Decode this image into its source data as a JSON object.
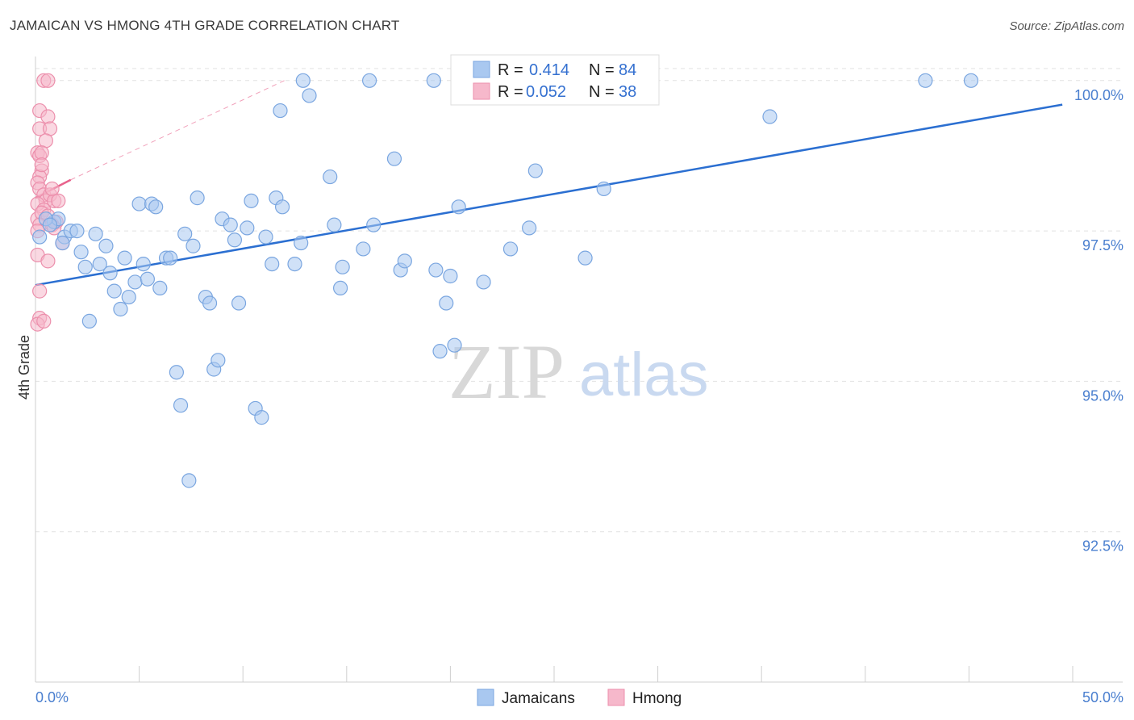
{
  "header": {
    "title": "JAMAICAN VS HMONG 4TH GRADE CORRELATION CHART",
    "source": "Source: ZipAtlas.com"
  },
  "chart_data": {
    "type": "scatter",
    "title": "JAMAICAN VS HMONG 4TH GRADE CORRELATION CHART",
    "xlabel": "",
    "ylabel": "4th Grade",
    "xlim": [
      0,
      50
    ],
    "ylim": [
      90.0,
      100.4
    ],
    "x_tick_labels": [
      "0.0%",
      "50.0%"
    ],
    "y_ticks": [
      92.5,
      95.0,
      97.5,
      100.0
    ],
    "y_tick_labels": [
      "92.5%",
      "95.0%",
      "97.5%",
      "100.0%"
    ],
    "grid": true,
    "watermark": {
      "part1": "ZIP",
      "part2": "atlas"
    },
    "legend": {
      "rows": [
        {
          "r_label": "R = ",
          "r_value": "0.414",
          "n_label": "N = ",
          "n_value": "84"
        },
        {
          "r_label": "R = ",
          "r_value": "0.052",
          "n_label": "N = ",
          "n_value": "38"
        }
      ]
    },
    "series": [
      {
        "name": "Jamaicans",
        "color": "#a9c8f0",
        "edge": "#7aa6e0",
        "line_color": "#2b6fd1",
        "trend": {
          "x": [
            0,
            49.5
          ],
          "y": [
            96.6,
            99.6
          ]
        },
        "points": [
          [
            0.2,
            97.4
          ],
          [
            0.9,
            97.65
          ],
          [
            1.1,
            97.7
          ],
          [
            1.4,
            97.4
          ],
          [
            1.7,
            97.5
          ],
          [
            2.0,
            97.5
          ],
          [
            2.2,
            97.15
          ],
          [
            2.4,
            96.9
          ],
          [
            2.6,
            96.0
          ],
          [
            2.9,
            97.45
          ],
          [
            3.1,
            96.95
          ],
          [
            3.4,
            97.25
          ],
          [
            3.6,
            96.8
          ],
          [
            3.8,
            96.5
          ],
          [
            4.1,
            96.2
          ],
          [
            4.3,
            97.05
          ],
          [
            4.5,
            96.4
          ],
          [
            4.8,
            96.65
          ],
          [
            5.0,
            97.95
          ],
          [
            5.2,
            96.95
          ],
          [
            5.4,
            96.7
          ],
          [
            5.6,
            97.95
          ],
          [
            5.8,
            97.9
          ],
          [
            6.0,
            96.55
          ],
          [
            6.3,
            97.05
          ],
          [
            6.5,
            97.05
          ],
          [
            6.8,
            95.15
          ],
          [
            7.0,
            94.6
          ],
          [
            7.2,
            97.45
          ],
          [
            7.4,
            93.35
          ],
          [
            7.6,
            97.25
          ],
          [
            7.8,
            98.05
          ],
          [
            8.2,
            96.4
          ],
          [
            8.4,
            96.3
          ],
          [
            8.6,
            95.2
          ],
          [
            8.8,
            95.35
          ],
          [
            9.0,
            97.7
          ],
          [
            9.4,
            97.6
          ],
          [
            9.6,
            97.35
          ],
          [
            9.8,
            96.3
          ],
          [
            10.2,
            97.55
          ],
          [
            10.4,
            98.0
          ],
          [
            10.6,
            94.55
          ],
          [
            10.9,
            94.4
          ],
          [
            11.1,
            97.4
          ],
          [
            11.4,
            96.95
          ],
          [
            11.6,
            98.05
          ],
          [
            11.8,
            99.5
          ],
          [
            11.9,
            97.9
          ],
          [
            12.5,
            96.95
          ],
          [
            12.8,
            97.3
          ],
          [
            12.9,
            100.0
          ],
          [
            13.2,
            99.75
          ],
          [
            14.2,
            98.4
          ],
          [
            14.4,
            97.6
          ],
          [
            14.7,
            96.55
          ],
          [
            14.8,
            96.9
          ],
          [
            15.8,
            97.2
          ],
          [
            16.1,
            100.0
          ],
          [
            16.3,
            97.6
          ],
          [
            17.3,
            98.7
          ],
          [
            17.6,
            96.85
          ],
          [
            17.8,
            97.0
          ],
          [
            19.2,
            100.0
          ],
          [
            19.3,
            96.85
          ],
          [
            19.5,
            95.5
          ],
          [
            19.8,
            96.3
          ],
          [
            20.0,
            96.75
          ],
          [
            20.2,
            95.6
          ],
          [
            20.4,
            97.9
          ],
          [
            21.6,
            96.65
          ],
          [
            22.9,
            97.2
          ],
          [
            23.8,
            97.55
          ],
          [
            24.1,
            98.5
          ],
          [
            25.6,
            100.0
          ],
          [
            26.5,
            97.05
          ],
          [
            27.4,
            98.2
          ],
          [
            28.8,
            100.0
          ],
          [
            35.4,
            99.4
          ],
          [
            42.9,
            100.0
          ],
          [
            45.1,
            100.0
          ],
          [
            0.5,
            97.7
          ],
          [
            1.3,
            97.3
          ],
          [
            0.7,
            97.6
          ]
        ]
      },
      {
        "name": "Hmong",
        "color": "#f6b8cb",
        "edge": "#ec8fac",
        "line_color": "#e8628c",
        "trend": {
          "x": [
            0,
            1.7
          ],
          "y": [
            98.05,
            98.35
          ]
        },
        "trend_ext": {
          "x": [
            1.7,
            12.0
          ],
          "y": [
            98.35,
            100.0
          ]
        },
        "points": [
          [
            0.4,
            100.0
          ],
          [
            0.6,
            100.0
          ],
          [
            0.2,
            99.5
          ],
          [
            0.6,
            99.4
          ],
          [
            0.2,
            99.2
          ],
          [
            0.7,
            99.2
          ],
          [
            0.5,
            99.0
          ],
          [
            0.1,
            98.8
          ],
          [
            0.2,
            98.75
          ],
          [
            0.3,
            98.8
          ],
          [
            0.3,
            98.5
          ],
          [
            0.2,
            98.4
          ],
          [
            0.1,
            98.3
          ],
          [
            0.2,
            98.2
          ],
          [
            0.4,
            98.1
          ],
          [
            0.5,
            98.0
          ],
          [
            0.7,
            98.1
          ],
          [
            0.9,
            98.0
          ],
          [
            0.1,
            97.95
          ],
          [
            0.4,
            97.85
          ],
          [
            0.1,
            97.7
          ],
          [
            0.3,
            97.8
          ],
          [
            0.6,
            97.75
          ],
          [
            0.2,
            97.6
          ],
          [
            1.0,
            97.65
          ],
          [
            0.1,
            97.5
          ],
          [
            0.8,
            97.6
          ],
          [
            0.9,
            97.55
          ],
          [
            1.3,
            97.3
          ],
          [
            0.1,
            97.1
          ],
          [
            0.6,
            97.0
          ],
          [
            0.2,
            96.5
          ],
          [
            0.2,
            96.05
          ],
          [
            0.1,
            95.95
          ],
          [
            0.4,
            96.0
          ],
          [
            1.1,
            98.0
          ],
          [
            0.3,
            98.6
          ],
          [
            0.8,
            98.2
          ]
        ]
      }
    ]
  }
}
